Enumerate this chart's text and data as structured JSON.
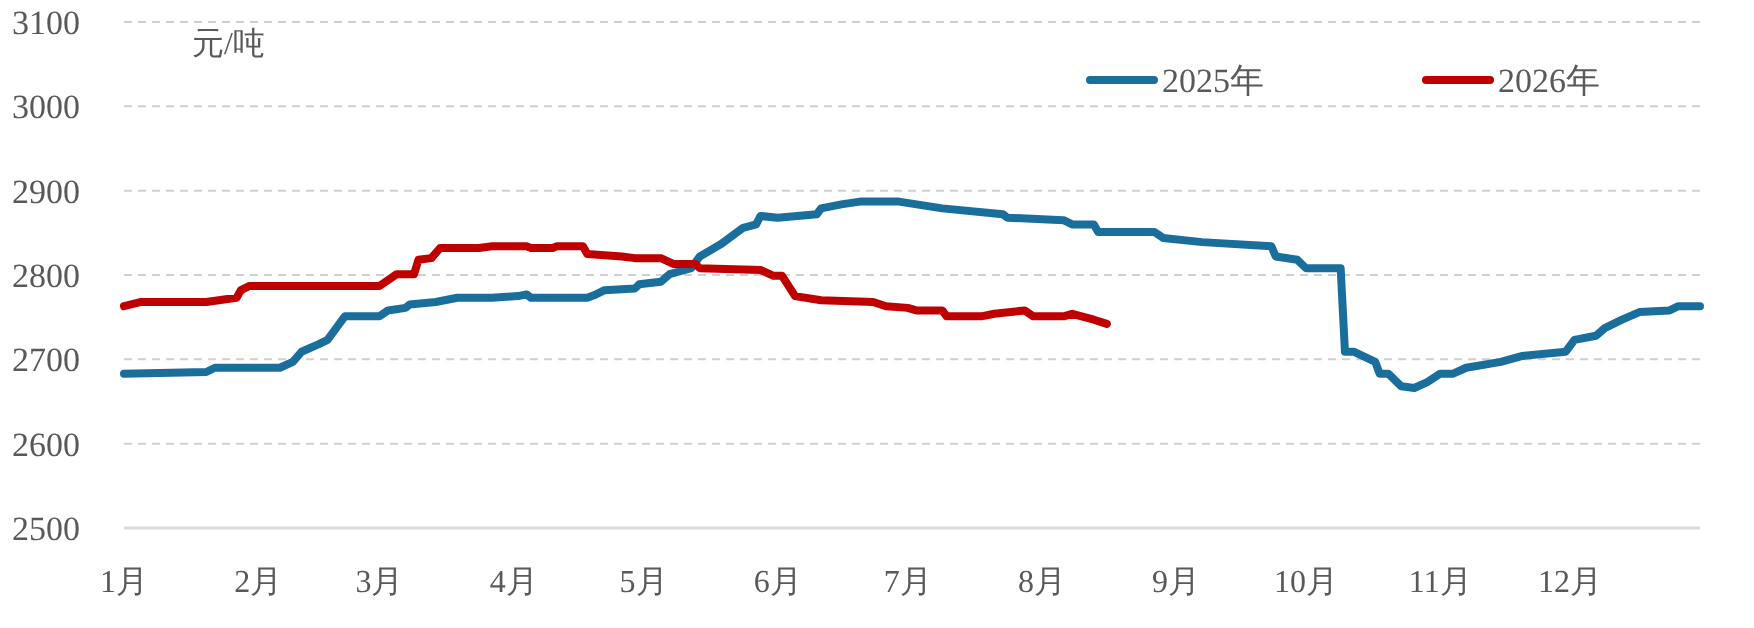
{
  "chart_data": {
    "type": "line",
    "ylabel": "元/吨",
    "xlim": [
      "--01-01",
      "--12-31"
    ],
    "ylim": [
      2500,
      3100
    ],
    "yticks": [
      2500,
      2600,
      2700,
      2800,
      2900,
      3000,
      3100
    ],
    "xticks": [
      {
        "value": "--01-01",
        "label": "1月"
      },
      {
        "value": "--02-01",
        "label": "2月"
      },
      {
        "value": "--03-01",
        "label": "3月"
      },
      {
        "value": "--04-01",
        "label": "4月"
      },
      {
        "value": "--05-01",
        "label": "5月"
      },
      {
        "value": "--06-01",
        "label": "6月"
      },
      {
        "value": "--07-01",
        "label": "7月"
      },
      {
        "value": "--08-01",
        "label": "8月"
      },
      {
        "value": "--09-01",
        "label": "9月"
      },
      {
        "value": "--10-01",
        "label": "10月"
      },
      {
        "value": "--11-01",
        "label": "11月"
      },
      {
        "value": "--12-01",
        "label": "12月"
      }
    ],
    "grid": "y",
    "legend": "top right",
    "line_style": "solid",
    "series": [
      {
        "name": "2025年",
        "color": "#1a6e9c",
        "x": [
          "--01-01",
          "--01-20",
          "--01-22",
          "--02-06",
          "--02-09",
          "--02-11",
          "--02-15",
          "--02-17",
          "--02-21",
          "--03-01",
          "--03-03",
          "--03-07",
          "--03-08",
          "--03-14",
          "--03-19",
          "--03-27",
          "--04-02",
          "--04-04",
          "--04-05",
          "--04-18",
          "--04-20",
          "--04-22",
          "--04-29",
          "--04-30",
          "--05-05",
          "--05-07",
          "--05-12",
          "--05-14",
          "--05-19",
          "--05-24",
          "--05-27",
          "--05-28",
          "--06-01",
          "--06-10",
          "--06-11",
          "--06-16",
          "--06-20",
          "--06-29",
          "--07-09",
          "--07-23",
          "--07-24",
          "--08-06",
          "--08-08",
          "--08-13",
          "--08-14",
          "--08-27",
          "--08-29",
          "--09-07",
          "--09-23",
          "--09-24",
          "--09-29",
          "--10-01",
          "--10-09",
          "--10-10",
          "--10-12",
          "--10-17",
          "--10-18",
          "--10-20",
          "--10-23",
          "--10-26",
          "--10-29",
          "--11-01",
          "--11-04",
          "--11-07",
          "--11-15",
          "--11-20",
          "--11-30",
          "--12-02",
          "--12-07",
          "--12-09",
          "--12-13",
          "--12-17",
          "--12-24",
          "--12-26",
          "--12-31"
        ],
        "values": [
          2683,
          2685,
          2690,
          2690,
          2697,
          2709,
          2718,
          2723,
          2751,
          2751,
          2758,
          2761,
          2765,
          2768,
          2773,
          2773,
          2775,
          2777,
          2773,
          2773,
          2777,
          2782,
          2784,
          2789,
          2792,
          2801,
          2808,
          2822,
          2837,
          2856,
          2860,
          2870,
          2868,
          2872,
          2879,
          2884,
          2887,
          2887,
          2879,
          2872,
          2868,
          2865,
          2860,
          2860,
          2851,
          2851,
          2844,
          2839,
          2834,
          2822,
          2818,
          2808,
          2808,
          2709,
          2709,
          2697,
          2683,
          2683,
          2668,
          2666,
          2673,
          2683,
          2683,
          2690,
          2697,
          2704,
          2709,
          2723,
          2728,
          2737,
          2747,
          2756,
          2758,
          2763,
          2763
        ]
      },
      {
        "name": "2026年",
        "color": "#c00000",
        "x": [
          "--01-01",
          "--01-05",
          "--01-20",
          "--01-27",
          "--01-28",
          "--01-30",
          "--03-01",
          "--03-05",
          "--03-09",
          "--03-10",
          "--03-13",
          "--03-15",
          "--03-24",
          "--03-27",
          "--04-04",
          "--04-05",
          "--04-10",
          "--04-11",
          "--04-17",
          "--04-18",
          "--04-26",
          "--04-29",
          "--05-05",
          "--05-08",
          "--05-13",
          "--05-14",
          "--05-28",
          "--05-31",
          "--06-02",
          "--06-05",
          "--06-11",
          "--06-23",
          "--06-26",
          "--07-01",
          "--07-03",
          "--07-09",
          "--07-10",
          "--07-18",
          "--07-21",
          "--07-28",
          "--07-30",
          "--08-06",
          "--08-08",
          "--08-13",
          "--08-16"
        ],
        "values": [
          2763,
          2768,
          2768,
          2773,
          2782,
          2787,
          2787,
          2801,
          2801,
          2818,
          2820,
          2832,
          2832,
          2834,
          2834,
          2832,
          2832,
          2834,
          2834,
          2825,
          2822,
          2820,
          2820,
          2813,
          2813,
          2808,
          2806,
          2799,
          2799,
          2775,
          2770,
          2768,
          2763,
          2761,
          2758,
          2758,
          2751,
          2751,
          2754,
          2758,
          2751,
          2751,
          2754,
          2747,
          2742
        ]
      }
    ]
  }
}
